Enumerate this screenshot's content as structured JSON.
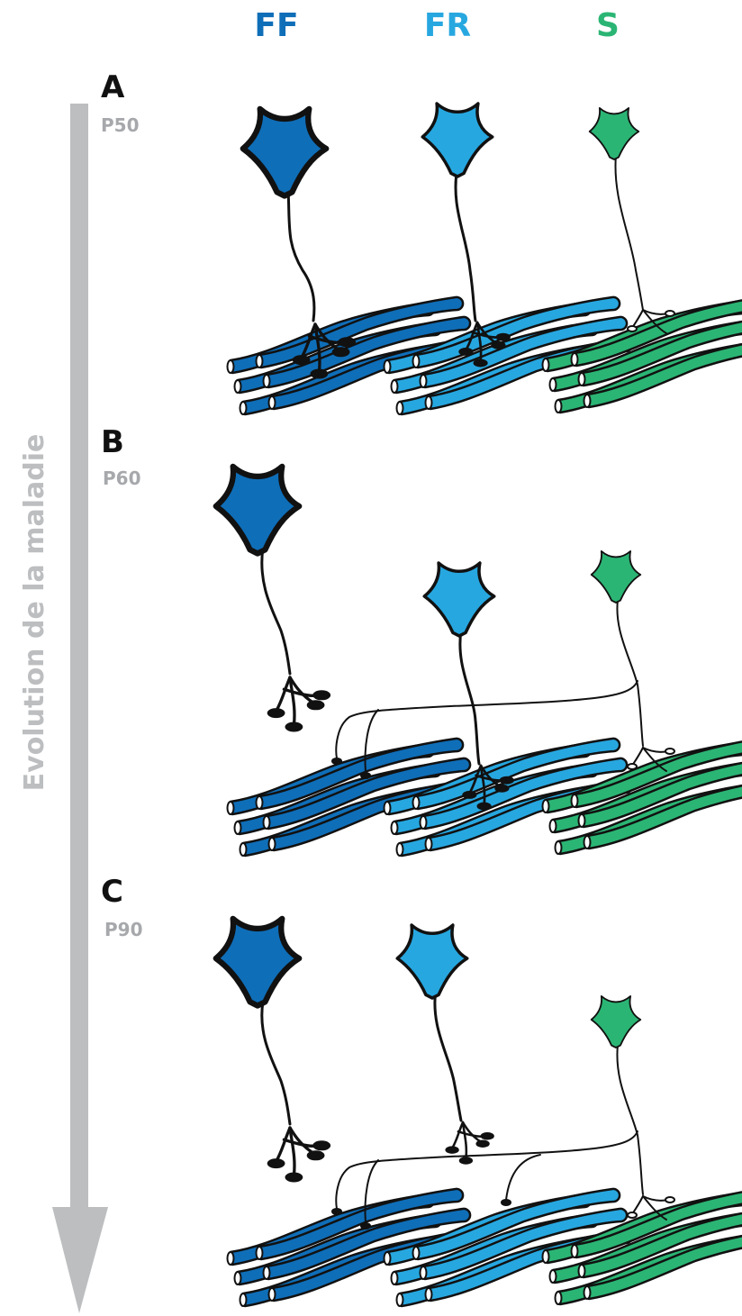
{
  "header": {
    "ff": {
      "label": "FF",
      "color": "#0f6eb8"
    },
    "fr": {
      "label": "FR",
      "color": "#27a7e0"
    },
    "s": {
      "label": "S",
      "color": "#2bb574"
    }
  },
  "axis": {
    "label": "Evolution de la maladie",
    "color": "#bcbec0"
  },
  "panels": [
    {
      "letter": "A",
      "time": "P50"
    },
    {
      "letter": "B",
      "time": "P60"
    },
    {
      "letter": "C",
      "time": "P90"
    }
  ]
}
